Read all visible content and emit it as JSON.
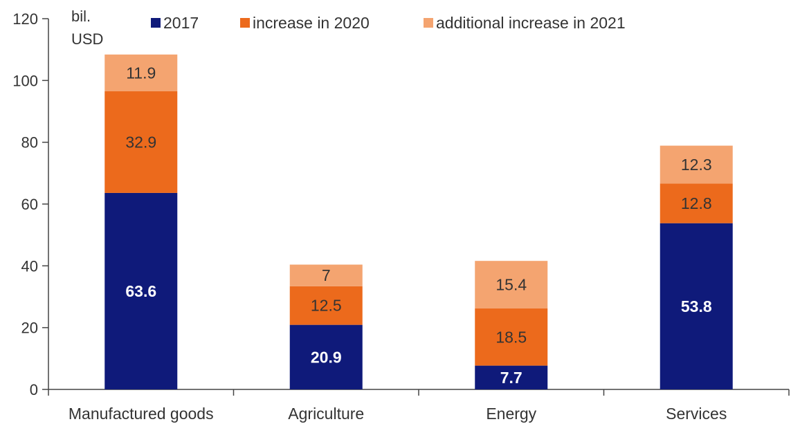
{
  "chart_data": {
    "type": "bar",
    "stacked": true,
    "unit_label": [
      "bil.",
      "USD"
    ],
    "categories": [
      "Manufactured goods",
      "Agriculture",
      "Energy",
      "Services"
    ],
    "series": [
      {
        "name": "2017",
        "color": "#0f1a7a",
        "label_color": "#ffffff",
        "values": [
          63.6,
          20.9,
          7.7,
          53.8
        ]
      },
      {
        "name": "increase in 2020",
        "color": "#ec6a1c",
        "label_color": "#333333",
        "values": [
          32.9,
          12.5,
          18.5,
          12.8
        ]
      },
      {
        "name": "additional increase in 2021",
        "color": "#f4a470",
        "label_color": "#333333",
        "values": [
          11.9,
          7,
          15.4,
          12.3
        ]
      }
    ],
    "data_labels": [
      [
        "63.6",
        "20.9",
        "7.7",
        "53.8"
      ],
      [
        "32.9",
        "12.5",
        "18.5",
        "12.8"
      ],
      [
        "11.9",
        "7",
        "15.4",
        "12.3"
      ]
    ],
    "ylim": [
      0,
      120
    ],
    "yticks": [
      0,
      20,
      40,
      60,
      80,
      100,
      120
    ],
    "ytick_labels": [
      "0",
      "20",
      "40",
      "60",
      "80",
      "100",
      "120"
    ],
    "grid": false,
    "legend_position": "top"
  }
}
